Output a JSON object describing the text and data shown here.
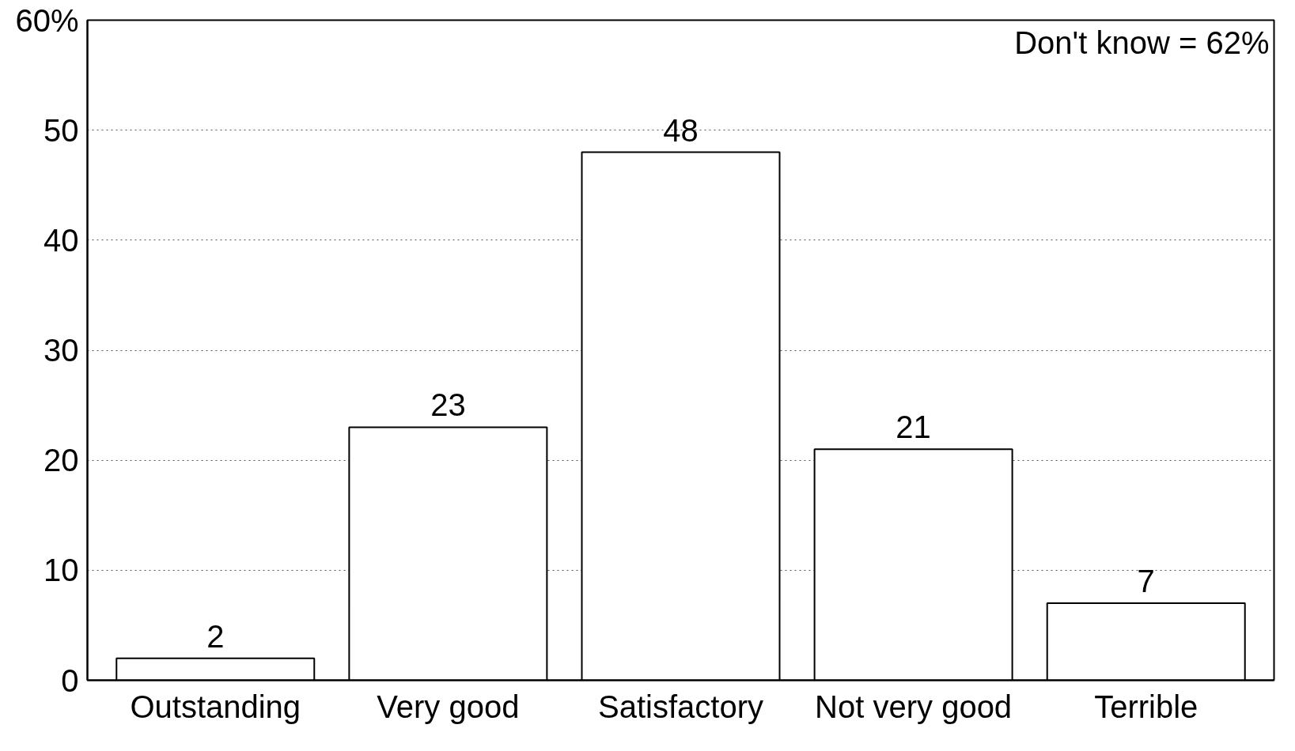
{
  "chart_data": {
    "type": "bar",
    "categories": [
      "Outstanding",
      "Very good",
      "Satisfactory",
      "Not very good",
      "Terrible"
    ],
    "values": [
      2,
      23,
      48,
      21,
      7
    ],
    "color": "#ffffff",
    "data_labels": true,
    "ylim": [
      0,
      60
    ],
    "yticks": [
      0,
      10,
      20,
      30,
      40,
      50,
      {
        "value": 60,
        "label": "60%"
      }
    ],
    "grid": "y",
    "annotations": [
      "Don't know = 62%"
    ]
  }
}
